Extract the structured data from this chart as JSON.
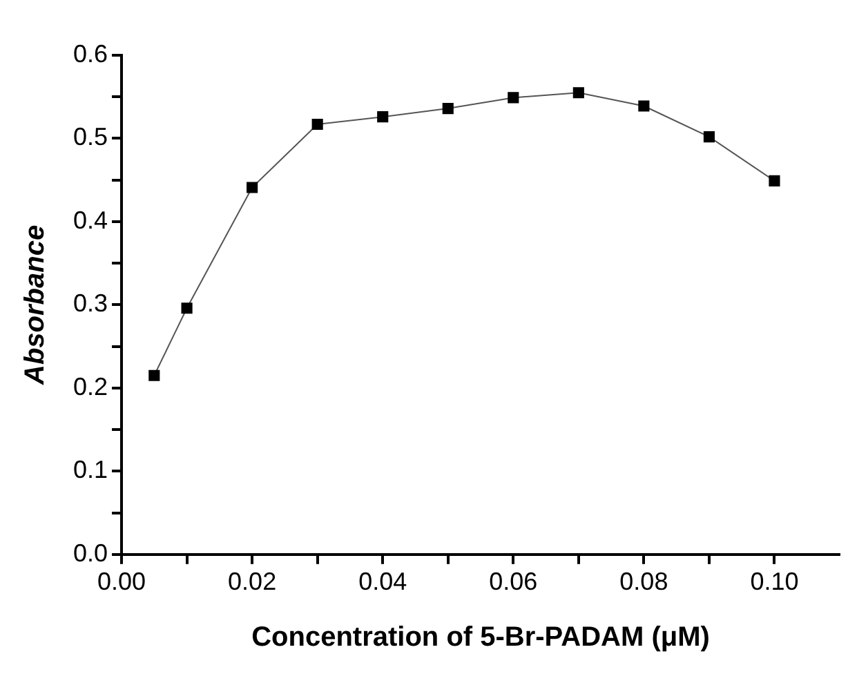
{
  "chart_data": {
    "type": "line",
    "xlabel": "Concentration of 5-Br-PADAM (μM)",
    "ylabel": "Absorbance",
    "x": [
      0.005,
      0.01,
      0.02,
      0.03,
      0.04,
      0.05,
      0.06,
      0.07,
      0.08,
      0.09,
      0.1
    ],
    "series": [
      {
        "color": "#000000",
        "values": [
          0.215,
          0.296,
          0.441,
          0.517,
          0.526,
          0.536,
          0.549,
          0.555,
          0.539,
          0.502,
          0.449
        ]
      }
    ],
    "xlim": [
      0,
      0.11
    ],
    "xticks": [
      "0.00",
      {
        "value": 0.01,
        "label": null
      },
      0.02,
      {
        "value": 0.03,
        "label": null
      },
      0.04,
      {
        "value": 0.05,
        "label": null
      },
      0.06,
      {
        "value": 0.07,
        "label": null
      },
      0.08,
      {
        "value": 0.09,
        "label": null
      },
      "0.10"
    ],
    "ylim": [
      0,
      0.6
    ],
    "yticks": [
      "0.0",
      {
        "value": 0.05,
        "label": null
      },
      0.1,
      {
        "value": 0.15,
        "label": null
      },
      0.2,
      {
        "value": 0.25,
        "label": null
      },
      0.3,
      {
        "value": 0.35,
        "label": null
      },
      0.4,
      {
        "value": 0.45,
        "label": null
      },
      0.5,
      {
        "value": 0.55,
        "label": null
      },
      0.6
    ],
    "grid": false,
    "legend": false,
    "marker": "square",
    "line_style": "solid"
  }
}
